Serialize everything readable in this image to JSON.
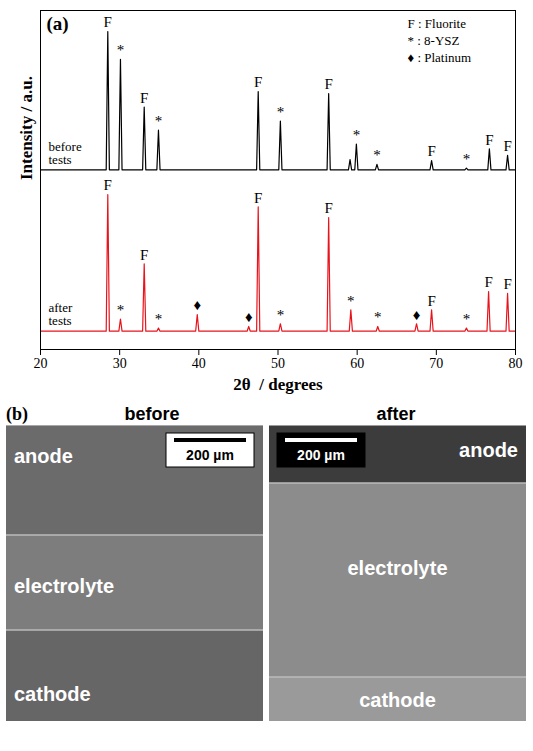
{
  "chart_data": {
    "type": "line",
    "title": "(a)",
    "x_label": "2θ  / degrees",
    "y_label": "Intensity / a.u.",
    "xlim": [
      20,
      80
    ],
    "xticks": [
      20,
      30,
      40,
      50,
      60,
      70,
      80
    ],
    "ylim": [
      0,
      100
    ],
    "yticks": [],
    "tick_labels": "x",
    "grid": false,
    "phase_key": [
      "F : Fluorite",
      "* : 8-YSZ",
      "♦ : Platinum"
    ],
    "series": [
      {
        "name": "before tests",
        "color": "#000000",
        "x": [
          20,
          28.3,
          28.5,
          28.7,
          29.9,
          30.1,
          30.3,
          32.9,
          33.1,
          33.3,
          34.7,
          34.9,
          35.1,
          47.3,
          47.5,
          47.7,
          50.1,
          50.3,
          50.5,
          56.2,
          56.4,
          56.6,
          58.9,
          59.1,
          59.3,
          59.7,
          59.9,
          60.1,
          62.3,
          62.5,
          62.7,
          69.2,
          69.4,
          69.6,
          73.6,
          73.8,
          74.0,
          76.5,
          76.7,
          76.9,
          78.8,
          79.0,
          79.2,
          80
        ],
        "values": [
          53,
          53,
          93.8,
          53,
          53,
          85.6,
          53,
          53,
          71.5,
          53,
          53,
          64.7,
          53,
          53,
          76.1,
          53,
          53,
          67.4,
          53,
          53,
          75.5,
          53,
          53,
          56,
          53,
          53,
          60.6,
          53,
          53,
          54.6,
          53,
          53,
          55.7,
          53,
          53,
          53.5,
          53,
          53,
          59.2,
          53,
          53,
          57.3,
          53,
          53
        ],
        "annotations": [
          {
            "x": 28.5,
            "y": 93.8,
            "text": "F"
          },
          {
            "x": 30.1,
            "y": 85.6,
            "text": "*"
          },
          {
            "x": 33.1,
            "y": 71.5,
            "text": "F"
          },
          {
            "x": 34.9,
            "y": 64.7,
            "text": "*"
          },
          {
            "x": 47.5,
            "y": 76.1,
            "text": "F"
          },
          {
            "x": 50.3,
            "y": 67.4,
            "text": "*"
          },
          {
            "x": 56.4,
            "y": 75.5,
            "text": "F"
          },
          {
            "x": 59.9,
            "y": 60.6,
            "text": "*"
          },
          {
            "x": 62.5,
            "y": 54.6,
            "text": "*"
          },
          {
            "x": 69.4,
            "y": 55.7,
            "text": "F"
          },
          {
            "x": 73.8,
            "y": 53.5,
            "text": "*"
          },
          {
            "x": 76.7,
            "y": 59.2,
            "text": "F"
          },
          {
            "x": 79.0,
            "y": 57.3,
            "text": "F"
          }
        ]
      },
      {
        "name": "after tests",
        "color": "#e8141c",
        "x": [
          20,
          28.3,
          28.5,
          28.7,
          29.9,
          30.1,
          30.3,
          32.9,
          33.1,
          33.3,
          34.7,
          34.9,
          35.1,
          39.6,
          39.8,
          40.0,
          46.1,
          46.3,
          46.5,
          47.3,
          47.5,
          47.7,
          50.1,
          50.3,
          50.5,
          56.2,
          56.4,
          56.6,
          59.0,
          59.2,
          59.4,
          62.4,
          62.6,
          62.8,
          67.3,
          67.5,
          67.7,
          69.2,
          69.4,
          69.6,
          73.6,
          73.8,
          74.0,
          76.4,
          76.6,
          76.8,
          78.8,
          79.0,
          79.2,
          80
        ],
        "values": [
          5.4,
          5.4,
          45.7,
          5.4,
          5.4,
          9,
          5.4,
          5.4,
          25.3,
          5.4,
          5.4,
          6.3,
          5.4,
          5.4,
          10.3,
          5.4,
          5.4,
          6.8,
          5.4,
          5.4,
          42.1,
          5.4,
          5.4,
          7.6,
          5.4,
          5.4,
          38.9,
          5.4,
          5.4,
          11.7,
          5.4,
          5.4,
          6.8,
          5.4,
          5.4,
          7.6,
          5.4,
          5.4,
          11.7,
          5.4,
          5.4,
          6.3,
          5.4,
          5.4,
          17.1,
          5.4,
          5.4,
          16.6,
          5.4,
          5.4
        ],
        "annotations": [
          {
            "x": 28.5,
            "y": 45.7,
            "text": "F"
          },
          {
            "x": 30.1,
            "y": 9,
            "text": "*"
          },
          {
            "x": 33.1,
            "y": 25.3,
            "text": "F"
          },
          {
            "x": 34.9,
            "y": 6.3,
            "text": "*"
          },
          {
            "x": 39.8,
            "y": 10.3,
            "text": "♦"
          },
          {
            "x": 46.3,
            "y": 6.8,
            "text": "♦"
          },
          {
            "x": 47.5,
            "y": 42.1,
            "text": "F"
          },
          {
            "x": 50.3,
            "y": 7.6,
            "text": "*"
          },
          {
            "x": 56.4,
            "y": 38.9,
            "text": "F"
          },
          {
            "x": 59.2,
            "y": 11.7,
            "text": "*"
          },
          {
            "x": 62.6,
            "y": 6.8,
            "text": "*"
          },
          {
            "x": 67.5,
            "y": 7.6,
            "text": "♦"
          },
          {
            "x": 69.4,
            "y": 11.7,
            "text": "F"
          },
          {
            "x": 73.8,
            "y": 6.3,
            "text": "*"
          },
          {
            "x": 76.6,
            "y": 17.1,
            "text": "F"
          },
          {
            "x": 79.0,
            "y": 16.6,
            "text": "F"
          }
        ]
      }
    ]
  },
  "micrographs": {
    "title": "(b)",
    "panels": [
      {
        "title": "before",
        "layers": [
          "anode",
          "electrolyte",
          "cathode"
        ],
        "scale_bar": "200 µm"
      },
      {
        "title": "after",
        "layers": [
          "anode",
          "electrolyte",
          "cathode"
        ],
        "scale_bar": "200 µm"
      }
    ]
  }
}
